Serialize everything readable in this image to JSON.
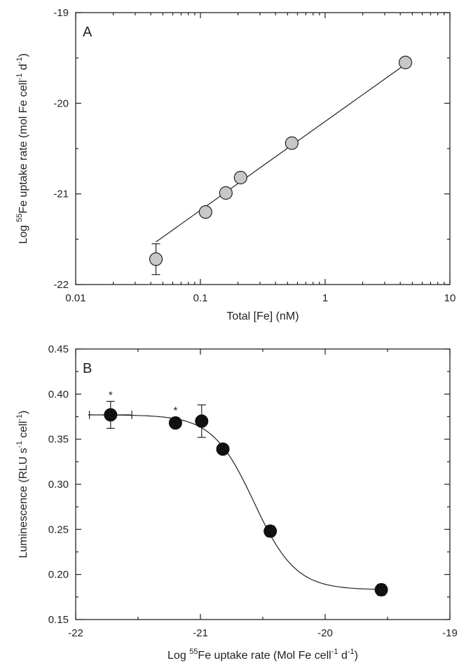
{
  "chart_data": [
    {
      "panel": "A",
      "type": "scatter",
      "xscale": "log",
      "xlim": [
        0.01,
        10
      ],
      "ylim": [
        -22,
        -19
      ],
      "xticks": [
        0.01,
        0.1,
        1,
        10
      ],
      "xtick_labels": [
        "0.01",
        "0.1",
        "1",
        "10"
      ],
      "yticks": [
        -19,
        -20,
        -21,
        -22
      ],
      "ytick_labels": [
        "-19",
        "-20",
        "-21",
        "-22"
      ],
      "xlabel": "Total [Fe] (nM)",
      "ylabel_parts": [
        "Log ",
        "55",
        "Fe uptake rate (mol Fe cell",
        "-1",
        " d",
        "-1",
        ")"
      ],
      "marker_color": "#c8c8c8",
      "grid": false,
      "points": [
        {
          "x": 0.044,
          "y": -21.72,
          "yerr": 0.17
        },
        {
          "x": 0.11,
          "y": -21.2
        },
        {
          "x": 0.16,
          "y": -20.99
        },
        {
          "x": 0.21,
          "y": -20.82
        },
        {
          "x": 0.54,
          "y": -20.44
        },
        {
          "x": 4.4,
          "y": -19.55
        }
      ],
      "fit_line": {
        "x": [
          0.044,
          4.4
        ],
        "y": [
          -21.53,
          -19.57
        ]
      }
    },
    {
      "panel": "B",
      "type": "scatter",
      "xlim": [
        -22,
        -19
      ],
      "ylim": [
        0.15,
        0.45
      ],
      "xticks": [
        -22,
        -21,
        -20,
        -19
      ],
      "xtick_labels": [
        "-22",
        "-21",
        "-20",
        "-19"
      ],
      "yticks": [
        0.15,
        0.2,
        0.25,
        0.3,
        0.35,
        0.4,
        0.45
      ],
      "ytick_labels": [
        "0.15",
        "0.20",
        "0.25",
        "0.30",
        "0.35",
        "0.40",
        "0.45"
      ],
      "xlabel_parts": [
        "Log ",
        "55",
        "Fe uptake rate (Mol Fe cell",
        "-1",
        " d",
        "-1",
        ")"
      ],
      "ylabel_parts": [
        "Luminescence (RLU s",
        "-1",
        " cell",
        "-1",
        ")"
      ],
      "marker_color": "#111111",
      "grid": false,
      "points": [
        {
          "x": -21.72,
          "y": 0.377,
          "yerr": 0.015,
          "xerr": 0.17,
          "star": "*"
        },
        {
          "x": -21.2,
          "y": 0.368,
          "star": "*"
        },
        {
          "x": -20.99,
          "y": 0.37,
          "yerr": 0.018
        },
        {
          "x": -20.82,
          "y": 0.339
        },
        {
          "x": -20.44,
          "y": 0.248,
          "yerr": 0.006
        },
        {
          "x": -19.55,
          "y": 0.183,
          "yerr": 0.006
        }
      ],
      "fit_curve": {
        "model": "sigmoid",
        "top": 0.377,
        "bottom": 0.183,
        "x50": -20.57,
        "slope": 6.0,
        "x_range": [
          -21.9,
          -19.55
        ]
      }
    }
  ]
}
